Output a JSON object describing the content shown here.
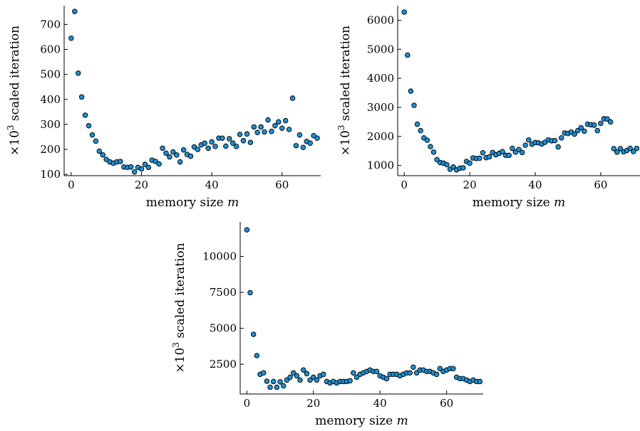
{
  "chart_data": [
    {
      "type": "scatter",
      "xlabel": "memory size m",
      "ylabel": "×10³ scaled iteration",
      "xlim": [
        -2,
        71
      ],
      "ylim": [
        95,
        775
      ],
      "xticks": [
        0,
        20,
        40,
        60
      ],
      "yticks": [
        100,
        200,
        300,
        400,
        500,
        600,
        700
      ],
      "grid": false,
      "marker_color": "#1f8fd1",
      "series": [
        {
          "x": [
            0,
            1,
            2,
            3,
            4,
            5,
            6,
            7,
            8,
            9,
            10,
            11,
            12,
            13,
            14,
            15,
            16,
            17,
            18,
            19,
            20,
            21,
            22,
            23,
            24,
            25,
            26,
            27,
            28,
            29,
            30,
            31,
            32,
            33,
            34,
            35,
            36,
            37,
            38,
            39,
            40,
            41,
            42,
            43,
            44,
            45,
            46,
            47,
            48,
            49,
            50,
            51,
            52,
            53,
            54,
            55,
            56,
            57,
            58,
            59,
            60,
            61,
            62,
            63,
            64,
            65,
            66,
            67,
            68,
            69,
            70
          ],
          "y": [
            645,
            752,
            505,
            410,
            337,
            295,
            258,
            233,
            193,
            178,
            160,
            150,
            145,
            150,
            152,
            130,
            128,
            130,
            110,
            128,
            122,
            140,
            128,
            157,
            152,
            142,
            205,
            185,
            170,
            190,
            178,
            150,
            198,
            180,
            173,
            210,
            200,
            218,
            225,
            205,
            230,
            212,
            245,
            245,
            213,
            243,
            225,
            212,
            260,
            235,
            262,
            228,
            290,
            268,
            290,
            270,
            318,
            272,
            295,
            310,
            285,
            315,
            280,
            405,
            215,
            258,
            208,
            232,
            225,
            255,
            245
          ]
        }
      ]
    },
    {
      "type": "scatter",
      "xlabel": "memory size m",
      "ylabel": "×10³ scaled iteration",
      "xlim": [
        -2,
        72
      ],
      "ylim": [
        650,
        6500
      ],
      "xticks": [
        0,
        20,
        40,
        60
      ],
      "yticks": [
        1000,
        2000,
        3000,
        4000,
        5000,
        6000
      ],
      "grid": false,
      "marker_color": "#1f8fd1",
      "series": [
        {
          "x": [
            0,
            1,
            2,
            3,
            4,
            5,
            6,
            7,
            8,
            9,
            10,
            11,
            12,
            13,
            14,
            15,
            16,
            17,
            18,
            19,
            20,
            21,
            22,
            23,
            24,
            25,
            26,
            27,
            28,
            29,
            30,
            31,
            32,
            33,
            34,
            35,
            36,
            37,
            38,
            39,
            40,
            41,
            42,
            43,
            44,
            45,
            46,
            47,
            48,
            49,
            50,
            51,
            52,
            53,
            54,
            55,
            56,
            57,
            58,
            59,
            60,
            61,
            62,
            63,
            64,
            65,
            66,
            67,
            68,
            69,
            70,
            71
          ],
          "y": [
            6280,
            4800,
            3560,
            3070,
            2420,
            2200,
            1950,
            1870,
            1650,
            1460,
            1200,
            1100,
            1080,
            1030,
            870,
            950,
            850,
            910,
            920,
            1140,
            1080,
            1260,
            1240,
            1250,
            1440,
            1270,
            1300,
            1450,
            1370,
            1420,
            1480,
            1350,
            1350,
            1590,
            1460,
            1550,
            1450,
            1700,
            1880,
            1730,
            1790,
            1780,
            1740,
            1800,
            1880,
            1850,
            1860,
            1640,
            1950,
            2120,
            2100,
            2150,
            2080,
            2200,
            2300,
            2180,
            2420,
            2400,
            2390,
            2200,
            2450,
            2610,
            2600,
            2500,
            1580,
            1460,
            1580,
            1470,
            1520,
            1590,
            1480,
            1590
          ]
        }
      ]
    },
    {
      "type": "scatter",
      "xlabel": "memory size m",
      "ylabel": "×10³ scaled iteration",
      "xlim": [
        -2,
        71
      ],
      "ylim": [
        430,
        12400
      ],
      "xticks": [
        0,
        20,
        40,
        60
      ],
      "yticks": [
        2500,
        5000,
        7500,
        10000
      ],
      "grid": false,
      "marker_color": "#1f8fd1",
      "series": [
        {
          "x": [
            0,
            1,
            2,
            3,
            4,
            5,
            6,
            7,
            8,
            9,
            10,
            11,
            12,
            13,
            14,
            15,
            16,
            17,
            18,
            19,
            20,
            21,
            22,
            23,
            24,
            25,
            26,
            27,
            28,
            29,
            30,
            31,
            32,
            33,
            34,
            35,
            36,
            37,
            38,
            39,
            40,
            41,
            42,
            43,
            44,
            45,
            46,
            47,
            48,
            49,
            50,
            51,
            52,
            53,
            54,
            55,
            56,
            57,
            58,
            59,
            60,
            61,
            62,
            63,
            64,
            65,
            66,
            67,
            68,
            69,
            70
          ],
          "y": [
            11850,
            7480,
            4580,
            3100,
            1800,
            1900,
            1320,
            900,
            1300,
            900,
            1280,
            1000,
            1400,
            1600,
            1900,
            1700,
            1400,
            2100,
            1850,
            1400,
            1600,
            1400,
            1700,
            1800,
            1300,
            1200,
            1300,
            1200,
            1300,
            1300,
            1300,
            1350,
            1900,
            1600,
            1800,
            1900,
            2000,
            2100,
            2000,
            2000,
            1700,
            1600,
            1500,
            1800,
            1800,
            1800,
            1700,
            1800,
            1900,
            1900,
            2300,
            1900,
            2100,
            2100,
            2000,
            2000,
            1900,
            1800,
            2200,
            2000,
            2100,
            2200,
            2200,
            1600,
            1500,
            1500,
            1400,
            1300,
            1400,
            1300,
            1300
          ]
        }
      ]
    }
  ]
}
